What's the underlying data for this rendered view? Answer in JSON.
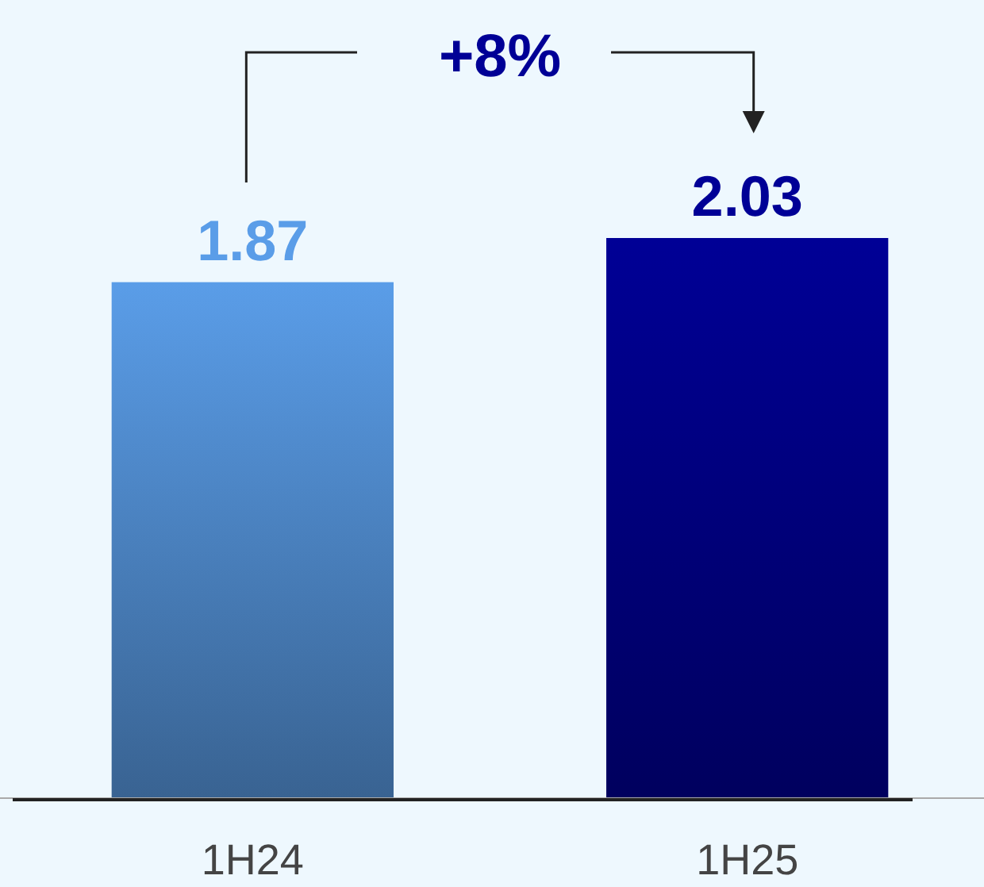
{
  "chart_data": {
    "type": "bar",
    "categories": [
      "1H24",
      "1H25"
    ],
    "values": [
      1.87,
      2.03
    ],
    "colors": [
      "#5a9de8",
      "#000096"
    ],
    "data_labels": true,
    "annotations": [
      "+8%"
    ]
  }
}
